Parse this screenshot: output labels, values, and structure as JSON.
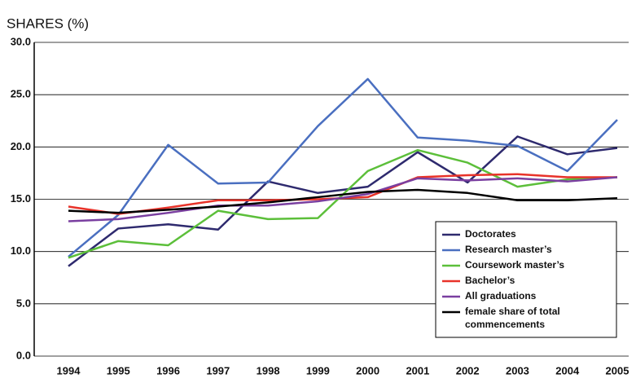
{
  "chart_data": {
    "type": "line",
    "title": "SHARES (%)",
    "categories": [
      "1994",
      "1995",
      "1996",
      "1997",
      "1998",
      "1999",
      "2000",
      "2001",
      "2002",
      "2003",
      "2004",
      "2005"
    ],
    "series": [
      {
        "name": "Doctorates",
        "color": "#2e2a6e",
        "values": [
          8.6,
          12.2,
          12.6,
          12.1,
          16.7,
          15.6,
          16.2,
          19.5,
          16.6,
          21.0,
          19.3,
          19.9
        ]
      },
      {
        "name": "Research master’s",
        "color": "#4a6fc0",
        "values": [
          9.5,
          13.5,
          20.2,
          16.5,
          16.6,
          22.0,
          26.5,
          20.9,
          20.6,
          20.1,
          17.7,
          22.6
        ]
      },
      {
        "name": "Coursework master’s",
        "color": "#5cbf3a",
        "values": [
          9.4,
          11.0,
          10.6,
          13.9,
          13.1,
          13.2,
          17.7,
          19.7,
          18.5,
          16.2,
          16.9,
          17.1
        ]
      },
      {
        "name": "Bachelor’s",
        "color": "#e8332a",
        "values": [
          14.3,
          13.6,
          14.2,
          14.9,
          14.9,
          15.0,
          15.2,
          17.1,
          17.3,
          17.4,
          17.1,
          17.1
        ]
      },
      {
        "name": "All graduations",
        "color": "#7a3fa0",
        "values": [
          12.9,
          13.1,
          13.7,
          14.4,
          14.4,
          14.8,
          15.5,
          17.0,
          16.8,
          17.0,
          16.7,
          17.1
        ]
      },
      {
        "name": "female share of total commencements",
        "color": "#000000",
        "values": [
          13.9,
          13.7,
          14.0,
          14.3,
          14.7,
          15.2,
          15.7,
          15.9,
          15.6,
          14.9,
          14.9,
          15.1
        ]
      }
    ],
    "ylim": [
      0,
      30
    ],
    "yticks": [
      {
        "value": 0,
        "label": "0.0"
      },
      {
        "value": 5,
        "label": "5.0"
      },
      {
        "value": 10,
        "label": "10.0"
      },
      {
        "value": 15,
        "label": "15.0"
      },
      {
        "value": 20,
        "label": "20.0"
      },
      {
        "value": 25,
        "label": "25.0"
      },
      {
        "value": 30,
        "label": "30.0"
      }
    ],
    "grid": true,
    "legend": "lower right"
  }
}
